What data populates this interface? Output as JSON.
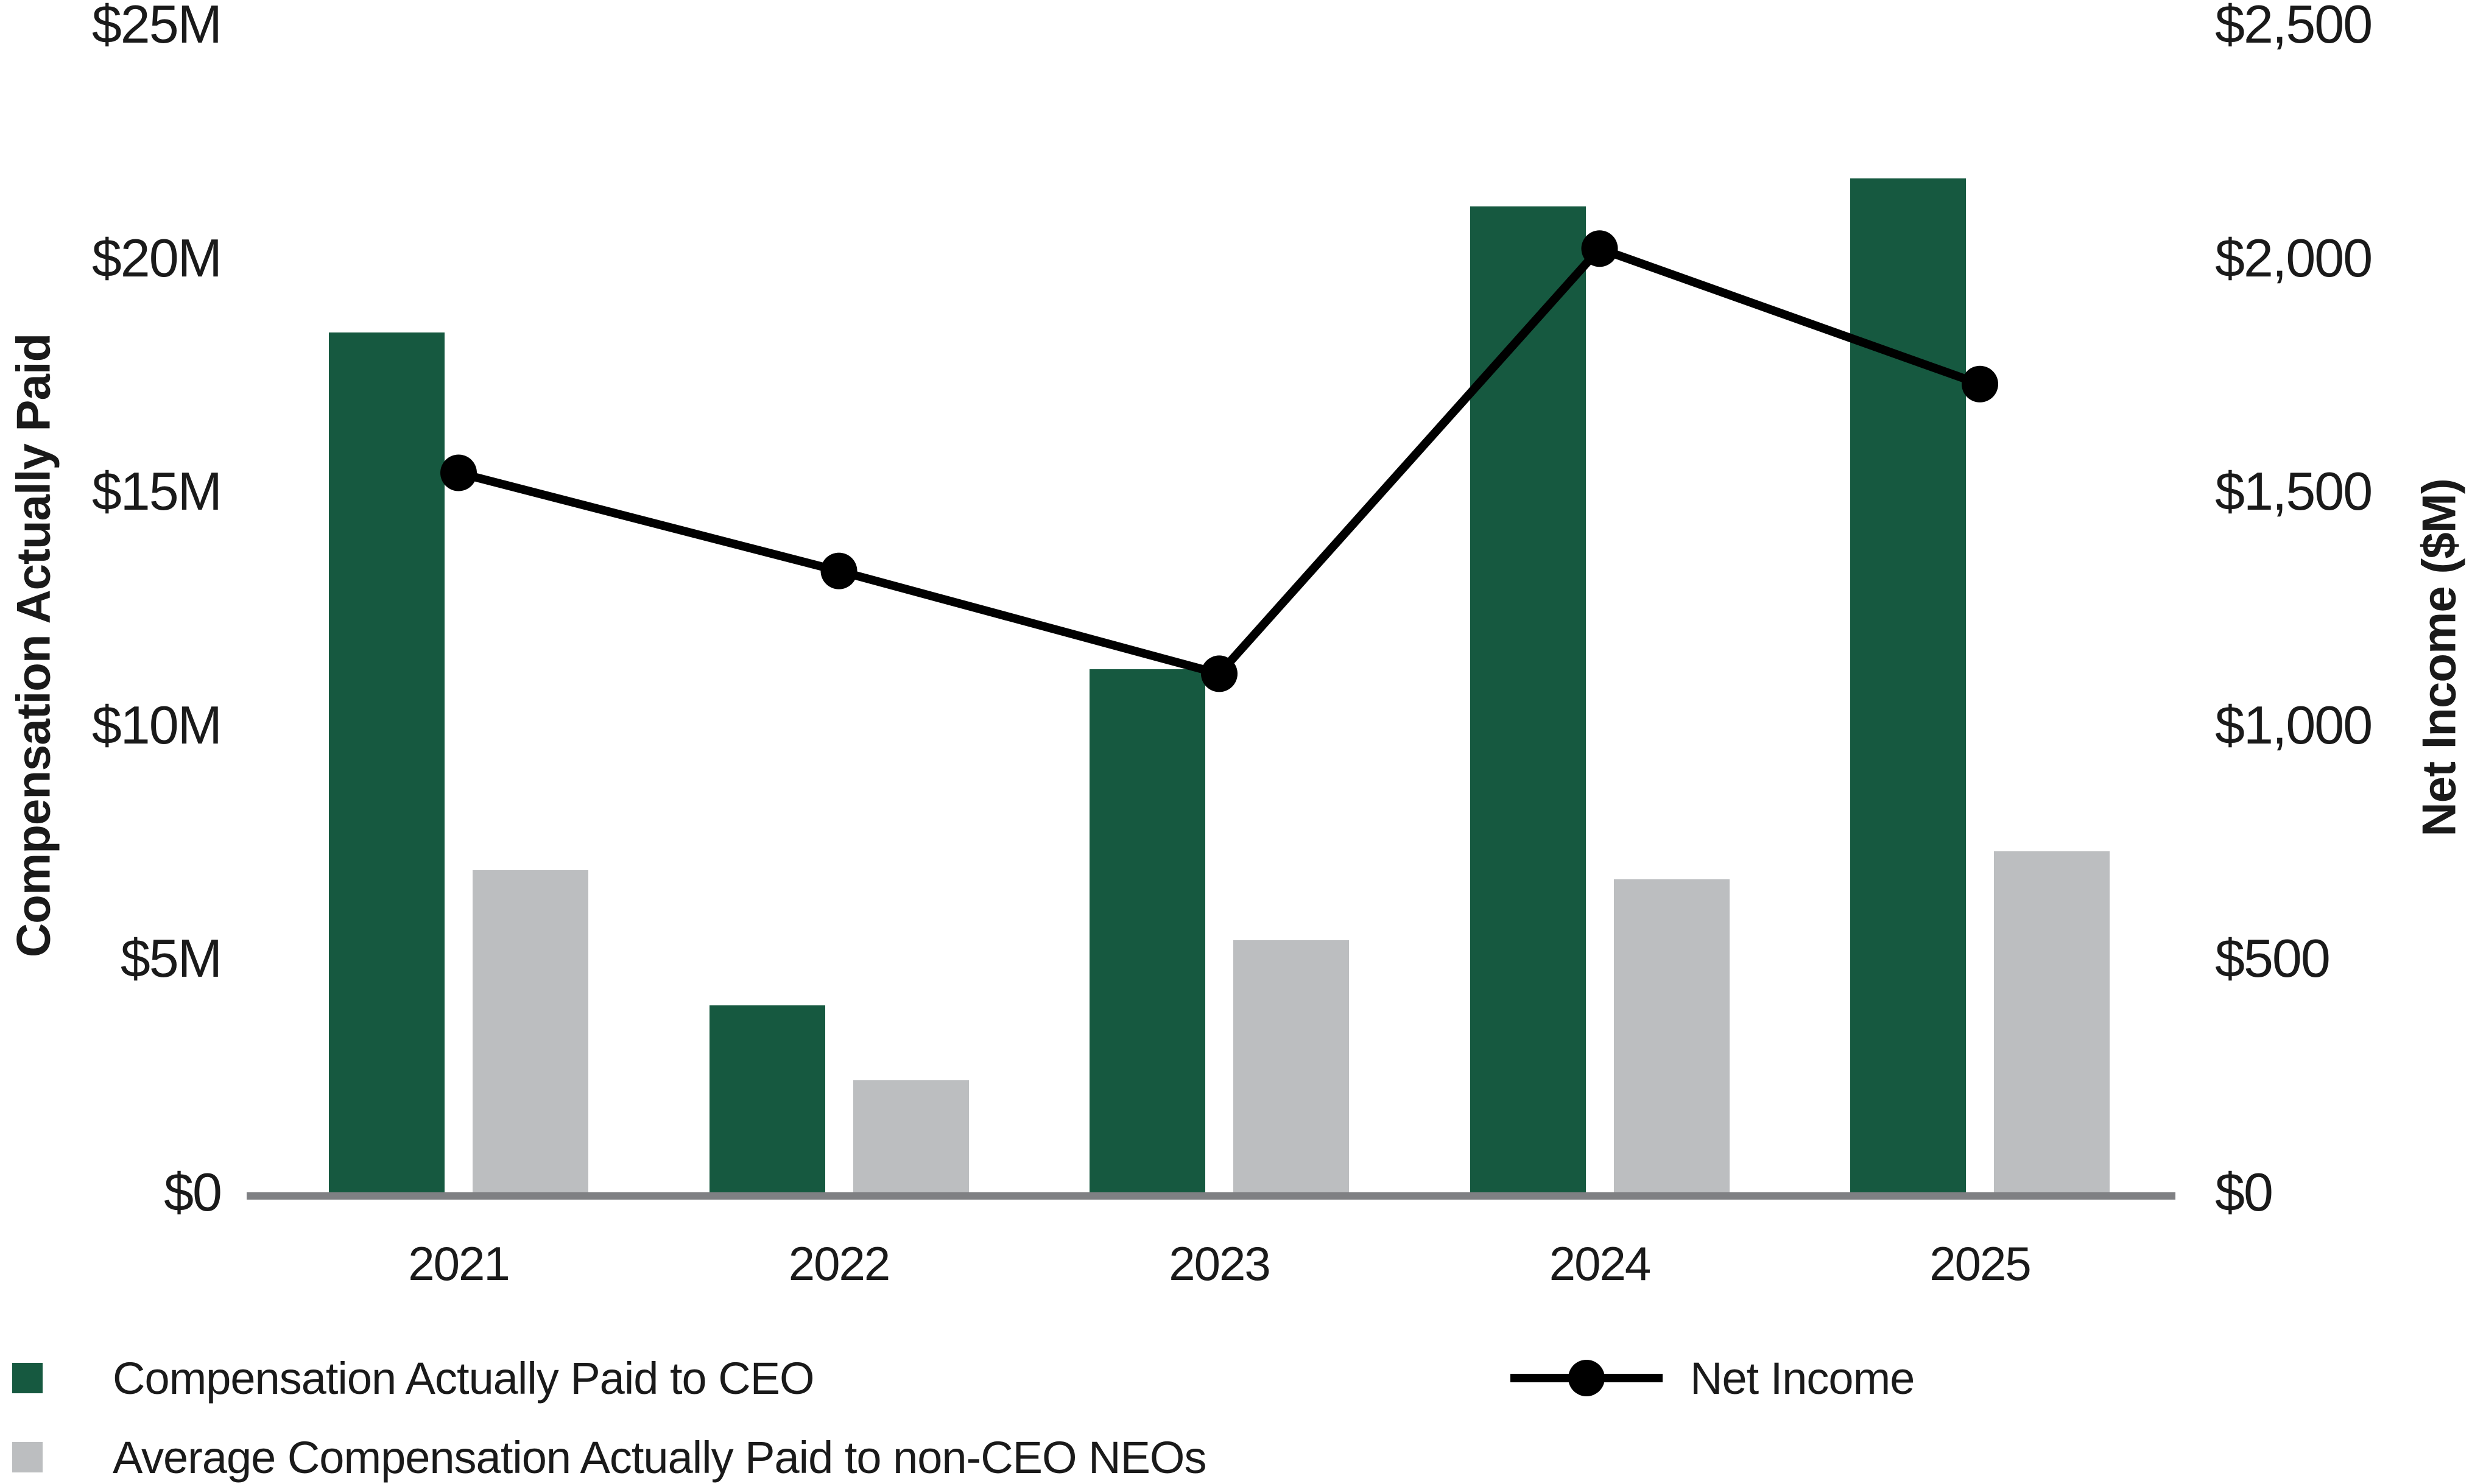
{
  "chart_data": {
    "type": "bar+line",
    "categories": [
      "2021",
      "2022",
      "2023",
      "2024",
      "2025"
    ],
    "series": [
      {
        "name": "Compensation Actually Paid to CEO",
        "type": "bar",
        "axis": "left",
        "color": "#165940",
        "values": [
          18.4,
          4.0,
          11.2,
          21.1,
          21.7
        ]
      },
      {
        "name": "Average Compensation Actually Paid to non-CEO NEOs",
        "type": "bar",
        "axis": "left",
        "color": "#bcbec0",
        "values": [
          6.9,
          2.4,
          5.4,
          6.7,
          7.3
        ]
      },
      {
        "name": "Net Income",
        "type": "line",
        "axis": "right",
        "color": "#000000",
        "values": [
          1540,
          1330,
          1110,
          2020,
          1730
        ]
      }
    ],
    "left_axis": {
      "title": "Compensation Actually Paid",
      "min": 0,
      "max": 25,
      "ticks": [
        "$0",
        "$5M",
        "$10M",
        "$15M",
        "$20M",
        "$25M"
      ]
    },
    "right_axis": {
      "title": "Net Income ($M)",
      "min": 0,
      "max": 2500,
      "ticks": [
        "$0",
        "$500",
        "$1,000",
        "$1,500",
        "$2,000",
        "$2,500"
      ]
    },
    "grid": false,
    "legend_position": "bottom"
  },
  "colors": {
    "ceo_bar": "#165940",
    "neo_bar": "#bcbec0",
    "net_income_line": "#000000",
    "axis_line": "#7f8083",
    "text": "#1a1a1a",
    "background": "#ffffff"
  }
}
